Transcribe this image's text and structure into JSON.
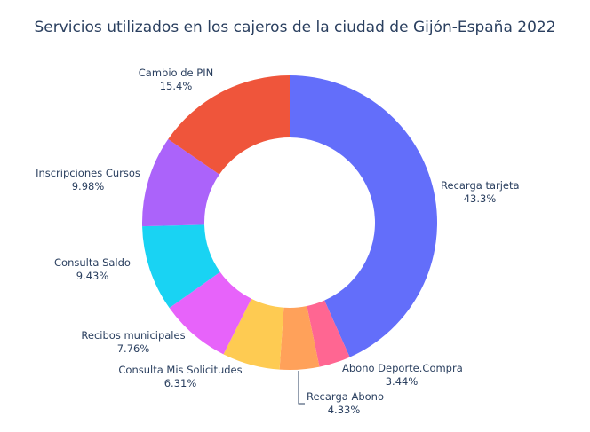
{
  "chart_data": {
    "type": "pie",
    "hole": true,
    "title": "Servicios utilizados en los cajeros de la ciudad de Gijón-España 2022",
    "slices": [
      {
        "label": "Recarga tarjeta",
        "value": 43.3,
        "percent_text": "43.3%",
        "color": "#636efa"
      },
      {
        "label": "Abono Deporte.Compra",
        "value": 3.44,
        "percent_text": "3.44%",
        "color": "#ff6692"
      },
      {
        "label": "Recarga Abono",
        "value": 4.33,
        "percent_text": "4.33%",
        "color": "#ffa15a"
      },
      {
        "label": "Consulta Mis Solicitudes",
        "value": 6.31,
        "percent_text": "6.31%",
        "color": "#fecb52"
      },
      {
        "label": "Recibos municipales",
        "value": 7.76,
        "percent_text": "7.76%",
        "color": "#e763fa"
      },
      {
        "label": "Consulta Saldo",
        "value": 9.43,
        "percent_text": "9.43%",
        "color": "#19d3f3"
      },
      {
        "label": "Inscripciones Cursos",
        "value": 9.98,
        "percent_text": "9.98%",
        "color": "#ab63fa"
      },
      {
        "label": "Cambio de PIN",
        "value": 15.4,
        "percent_text": "15.4%",
        "color": "#ef553b"
      }
    ]
  }
}
